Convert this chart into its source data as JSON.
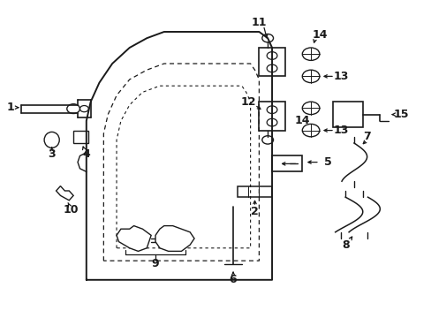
{
  "bg_color": "#ffffff",
  "line_color": "#1a1a1a",
  "figsize": [
    4.89,
    3.6
  ],
  "dpi": 100,
  "lw_main": 1.3,
  "lw_thin": 0.8,
  "font_size": 9
}
